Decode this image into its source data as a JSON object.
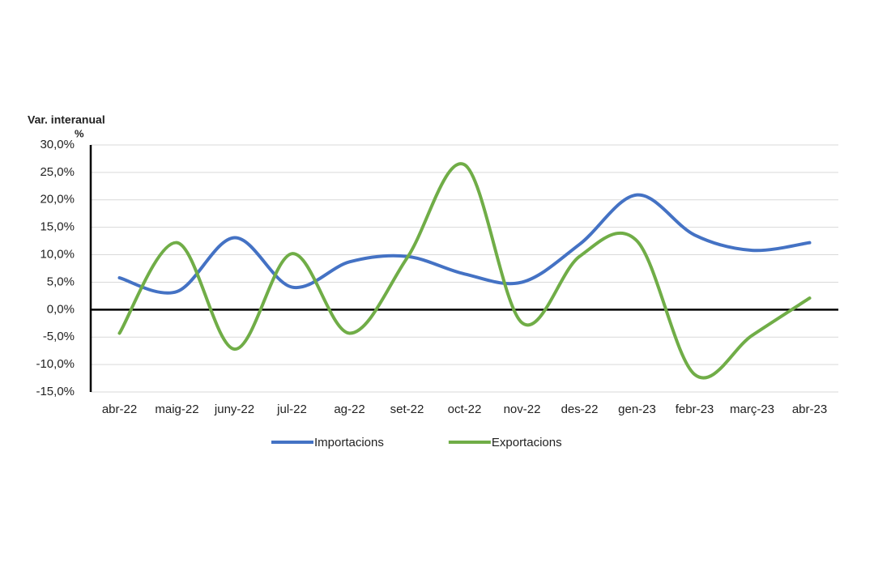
{
  "chart_data": {
    "type": "line",
    "ylabel": "Var. interanual",
    "ylabel_unit": "%",
    "categories": [
      "abr-22",
      "maig-22",
      "juny-22",
      "jul-22",
      "ag-22",
      "set-22",
      "oct-22",
      "nov-22",
      "des-22",
      "gen-23",
      "febr-23",
      "març-23",
      "abr-23"
    ],
    "series": [
      {
        "name": "Importacions",
        "color": "#4472c4",
        "values": [
          5.8,
          3.3,
          13.1,
          4.1,
          8.7,
          9.7,
          6.5,
          5.0,
          11.9,
          20.9,
          13.6,
          10.8,
          12.2
        ]
      },
      {
        "name": "Exportacions",
        "color": "#70ad47",
        "values": [
          -4.3,
          12.2,
          -7.2,
          10.2,
          -4.3,
          9.4,
          26.4,
          -2.4,
          9.7,
          12.5,
          -11.8,
          -4.7,
          2.1
        ]
      }
    ],
    "ylim": [
      -15,
      30
    ],
    "yticks": [
      {
        "value": -15,
        "label": "-15,0%"
      },
      {
        "value": -10,
        "label": "-10,0%"
      },
      {
        "value": -5,
        "label": "-5,0%"
      },
      {
        "value": 0,
        "label": "0,0%"
      },
      {
        "value": 5,
        "label": "5,0%"
      },
      {
        "value": 10,
        "label": "10,0%"
      },
      {
        "value": 15,
        "label": "15,0%"
      },
      {
        "value": 20,
        "label": "20,0%"
      },
      {
        "value": 25,
        "label": "25,0%"
      },
      {
        "value": 30,
        "label": "30,0%"
      }
    ],
    "grid": true,
    "smooth": true,
    "legend": "bottom"
  }
}
